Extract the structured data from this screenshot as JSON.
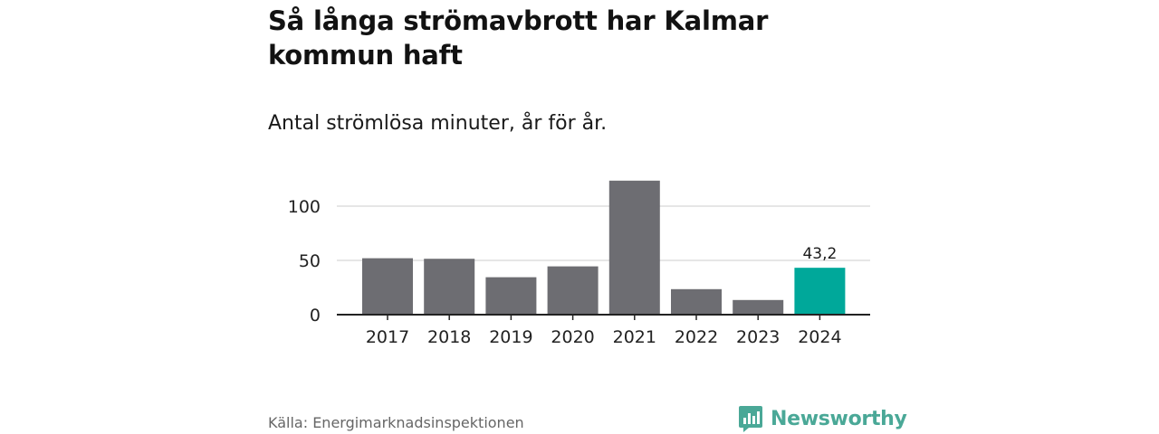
{
  "title": "Så långa strömavbrott har Kalmar kommun haft",
  "subtitle": "Antal strömlösa minuter, år för år.",
  "source": "Källa: Energimarknadsinspektionen",
  "brand": {
    "name": "Newsworthy",
    "icon": "newsworthy-logo-icon",
    "color": "#4aa897"
  },
  "colors": {
    "bar": "#6d6d72",
    "highlight": "#00a89a",
    "grid": "#cccccc",
    "axis": "#222222"
  },
  "chart_data": {
    "type": "bar",
    "categories": [
      "2017",
      "2018",
      "2019",
      "2020",
      "2021",
      "2022",
      "2023",
      "2024"
    ],
    "values": [
      52,
      51.5,
      34.5,
      44.5,
      123.5,
      23.5,
      13.5,
      43.2
    ],
    "highlight_index": 7,
    "data_labels": [
      {
        "index": 7,
        "text": "43,2"
      }
    ],
    "yticks": [
      0,
      50,
      100
    ],
    "ylim": [
      0,
      125
    ],
    "grid": true,
    "legend": "none"
  }
}
